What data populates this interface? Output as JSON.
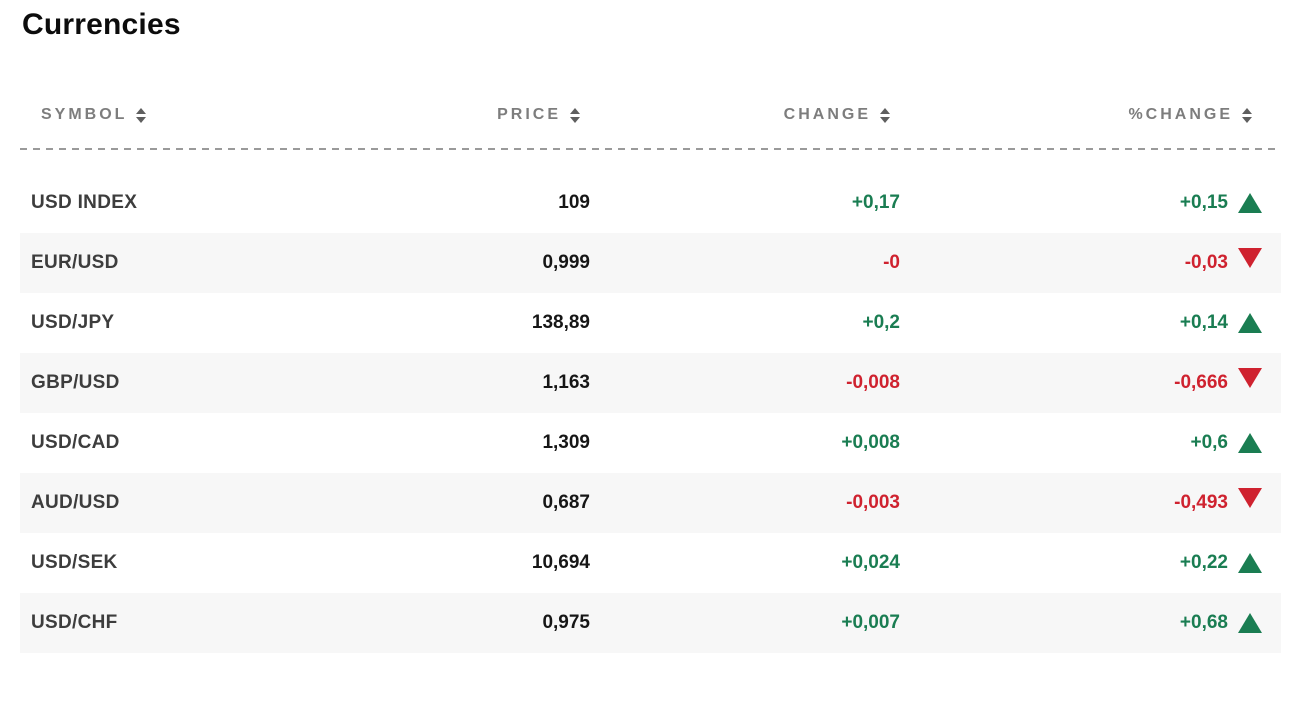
{
  "page_title": "Currencies",
  "colors": {
    "positive": "#1a7d52",
    "negative": "#cf222f",
    "row_alt_background": "#f7f7f7",
    "header_text": "#7d7d7d",
    "symbol_text": "#3d3d3d",
    "price_text": "#161616"
  },
  "table": {
    "columns": [
      {
        "id": "symbol",
        "label": "SYMBOL",
        "sort_icon": "up-down-arrows"
      },
      {
        "id": "price",
        "label": "PRICE",
        "sort_icon": "up-down-arrows"
      },
      {
        "id": "change",
        "label": "CHANGE",
        "sort_icon": "up-down-arrows"
      },
      {
        "id": "pct_change",
        "label": "%CHANGE",
        "sort_icon": "up-down-arrows"
      }
    ],
    "rows": [
      {
        "symbol": "USD INDEX",
        "price": "109",
        "change": "+0,17",
        "pct_change": "+0,15",
        "direction": "up"
      },
      {
        "symbol": "EUR/USD",
        "price": "0,999",
        "change": "-0",
        "pct_change": "-0,03",
        "direction": "down"
      },
      {
        "symbol": "USD/JPY",
        "price": "138,89",
        "change": "+0,2",
        "pct_change": "+0,14",
        "direction": "up"
      },
      {
        "symbol": "GBP/USD",
        "price": "1,163",
        "change": "-0,008",
        "pct_change": "-0,666",
        "direction": "down"
      },
      {
        "symbol": "USD/CAD",
        "price": "1,309",
        "change": "+0,008",
        "pct_change": "+0,6",
        "direction": "up"
      },
      {
        "symbol": "AUD/USD",
        "price": "0,687",
        "change": "-0,003",
        "pct_change": "-0,493",
        "direction": "down"
      },
      {
        "symbol": "USD/SEK",
        "price": "10,694",
        "change": "+0,024",
        "pct_change": "+0,22",
        "direction": "up"
      },
      {
        "symbol": "USD/CHF",
        "price": "0,975",
        "change": "+0,007",
        "pct_change": "+0,68",
        "direction": "up"
      }
    ]
  }
}
